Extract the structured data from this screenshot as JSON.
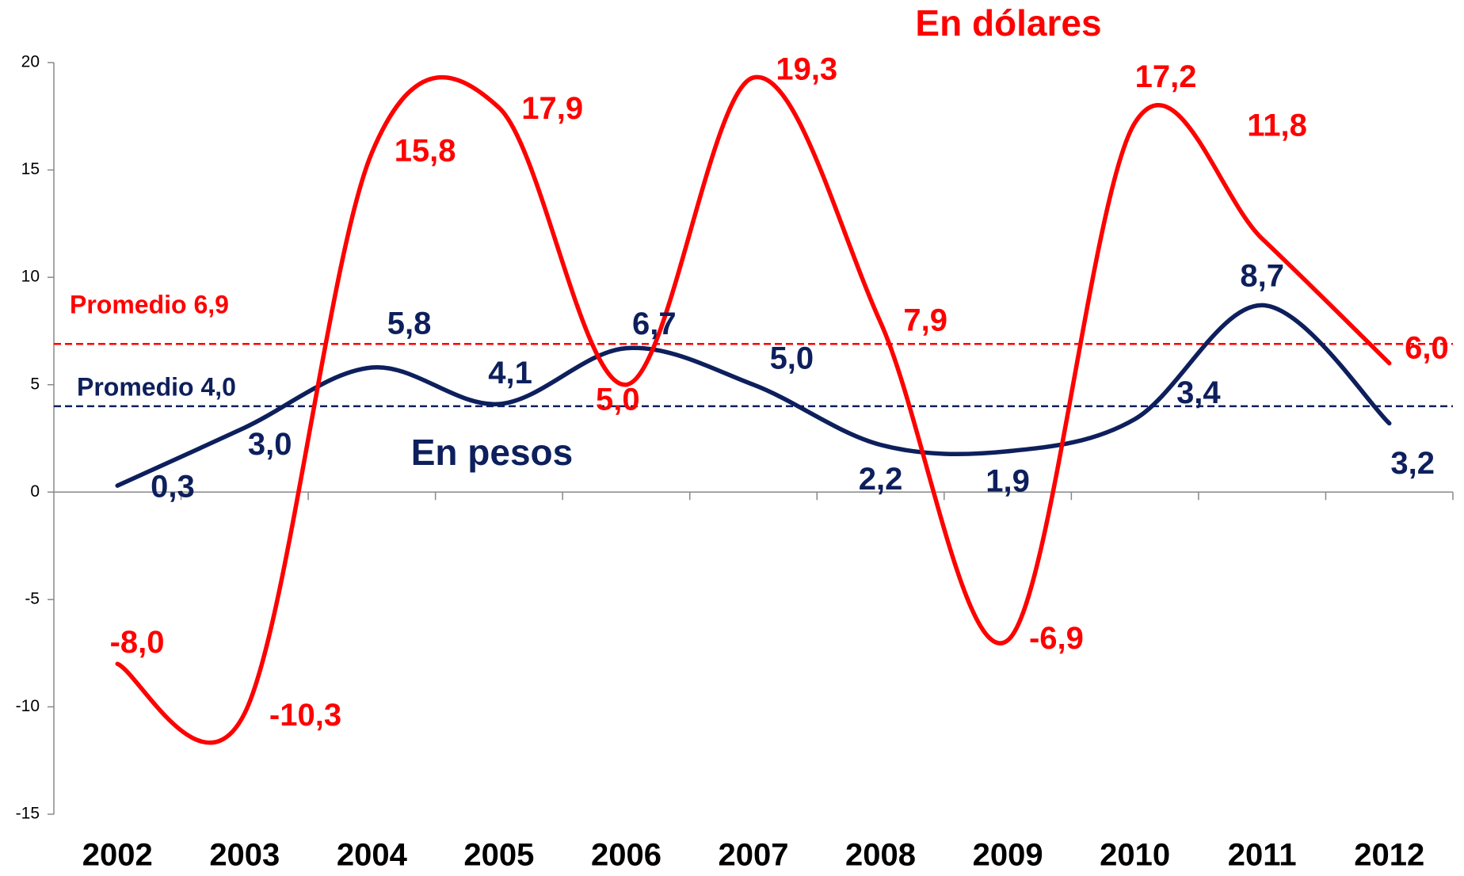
{
  "chart_data": {
    "type": "line",
    "categories": [
      "2002",
      "2003",
      "2004",
      "2005",
      "2006",
      "2007",
      "2008",
      "2009",
      "2010",
      "2011",
      "2012"
    ],
    "series": [
      {
        "name": "En dólares",
        "color": "#ff0000",
        "values": [
          -8.0,
          -10.3,
          15.8,
          17.9,
          5.0,
          19.3,
          7.9,
          -6.9,
          17.2,
          11.8,
          6.0
        ],
        "value_labels": [
          "-8,0",
          "-10,3",
          "15,8",
          "17,9",
          "5,0",
          "19,3",
          "7,9",
          "-6,9",
          "17,2",
          "11,8",
          "6,0"
        ]
      },
      {
        "name": "En pesos",
        "color": "#0d1f5c",
        "values": [
          0.3,
          3.0,
          5.8,
          4.1,
          6.7,
          5.0,
          2.2,
          1.9,
          3.4,
          8.7,
          3.2
        ],
        "value_labels": [
          "0,3",
          "3,0",
          "5,8",
          "4,1",
          "6,7",
          "5,0",
          "2,2",
          "1,9",
          "3,4",
          "8,7",
          "3,2"
        ]
      }
    ],
    "reference_lines": [
      {
        "label": "Promedio 6,9",
        "value": 6.9,
        "color": "#ff0000"
      },
      {
        "label": "Promedio 4,0",
        "value": 4.0,
        "color": "#0d1f5c"
      }
    ],
    "ylim": [
      -15,
      20
    ],
    "yticks": [
      -15,
      -10,
      -5,
      0,
      5,
      10,
      15,
      20
    ]
  }
}
